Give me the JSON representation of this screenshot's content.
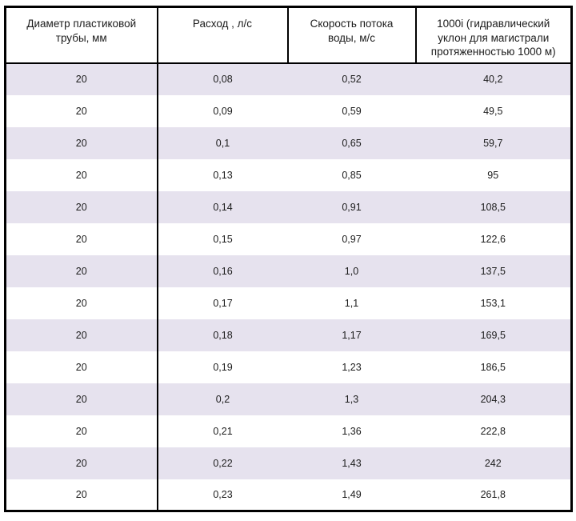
{
  "chart_data": {
    "type": "table",
    "columns": [
      "Диаметр пластиковой трубы, мм",
      "Расход , л/с",
      "Скорость потока воды, м/с",
      "1000i  (гидравлический уклон для магистрали протяженностью 1000 м)"
    ],
    "rows": [
      [
        "20",
        "0,08",
        "0,52",
        "40,2"
      ],
      [
        "20",
        "0,09",
        "0,59",
        "49,5"
      ],
      [
        "20",
        "0,1",
        "0,65",
        "59,7"
      ],
      [
        "20",
        "0,13",
        "0,85",
        "95"
      ],
      [
        "20",
        "0,14",
        "0,91",
        "108,5"
      ],
      [
        "20",
        "0,15",
        "0,97",
        "122,6"
      ],
      [
        "20",
        "0,16",
        "1,0",
        "137,5"
      ],
      [
        "20",
        "0,17",
        "1,1",
        "153,1"
      ],
      [
        "20",
        "0,18",
        "1,17",
        "169,5"
      ],
      [
        "20",
        "0,19",
        "1,23",
        "186,5"
      ],
      [
        "20",
        "0,2",
        "1,3",
        "204,3"
      ],
      [
        "20",
        "0,21",
        "1,36",
        "222,8"
      ],
      [
        "20",
        "0,22",
        "1,43",
        "242"
      ],
      [
        "20",
        "0,23",
        "1,49",
        "261,8"
      ]
    ],
    "layout": {
      "stripe_pattern": "odd-rows-shaded",
      "header_position": "top",
      "grid": "outer-and-header-borders-plus-first-column-divider"
    },
    "colors": {
      "stripe": "#e6e2ee",
      "border": "#000000",
      "text": "#1c1c1c",
      "background": "#ffffff"
    }
  }
}
